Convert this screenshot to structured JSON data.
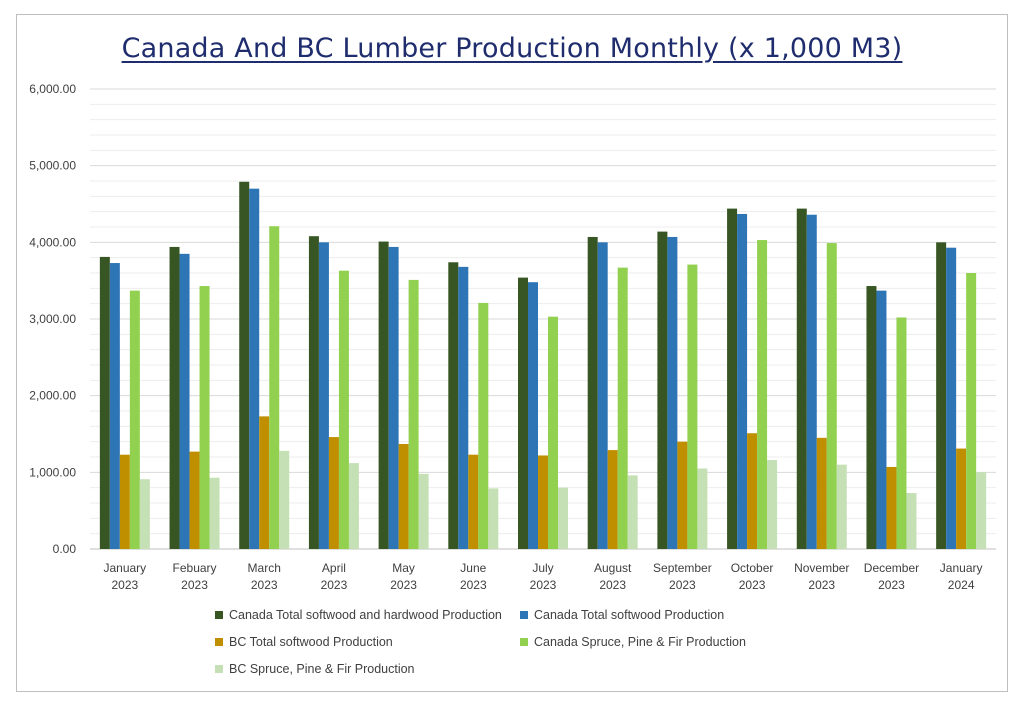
{
  "chart_data": {
    "type": "bar",
    "title": "Canada And BC Lumber Production Monthly (x 1,000 M3)",
    "xlabel": "",
    "ylabel": "",
    "ylim": [
      0,
      6000
    ],
    "yticks": [
      "0.00",
      "1,000.00",
      "2,000.00",
      "3,000.00",
      "4,000.00",
      "5,000.00",
      "6,000.00"
    ],
    "grid": true,
    "legend_position": "bottom",
    "categories": [
      [
        "January",
        "2023"
      ],
      [
        "Febuary",
        "2023"
      ],
      [
        "March",
        "2023"
      ],
      [
        "April",
        "2023"
      ],
      [
        "May",
        "2023"
      ],
      [
        "June",
        "2023"
      ],
      [
        "July",
        "2023"
      ],
      [
        "August",
        "2023"
      ],
      [
        "September",
        "2023"
      ],
      [
        "October",
        "2023"
      ],
      [
        "November",
        "2023"
      ],
      [
        "December",
        "2023"
      ],
      [
        "January",
        "2024"
      ]
    ],
    "series": [
      {
        "name": "Canada Total softwood and hardwood Production",
        "color": "#375623",
        "values": [
          3810,
          3940,
          4790,
          4080,
          4010,
          3740,
          3540,
          4070,
          4140,
          4440,
          4440,
          3430,
          4000
        ]
      },
      {
        "name": "Canada Total softwood Production",
        "color": "#2e75b6",
        "values": [
          3730,
          3850,
          4700,
          4000,
          3940,
          3680,
          3480,
          4000,
          4070,
          4370,
          4360,
          3370,
          3930
        ]
      },
      {
        "name": "BC Total softwood Production",
        "color": "#bf8f00",
        "values": [
          1230,
          1270,
          1730,
          1460,
          1370,
          1230,
          1220,
          1290,
          1400,
          1510,
          1450,
          1070,
          1310
        ]
      },
      {
        "name": "Canada Spruce, Pine & Fir Production",
        "color": "#92d050",
        "values": [
          3370,
          3430,
          4210,
          3630,
          3510,
          3210,
          3030,
          3670,
          3710,
          4030,
          3990,
          3020,
          3600
        ]
      },
      {
        "name": "BC Spruce, Pine & Fir Production",
        "color": "#c5e0b4",
        "values": [
          910,
          930,
          1280,
          1120,
          980,
          790,
          800,
          960,
          1050,
          1160,
          1100,
          730,
          1000
        ]
      }
    ]
  }
}
